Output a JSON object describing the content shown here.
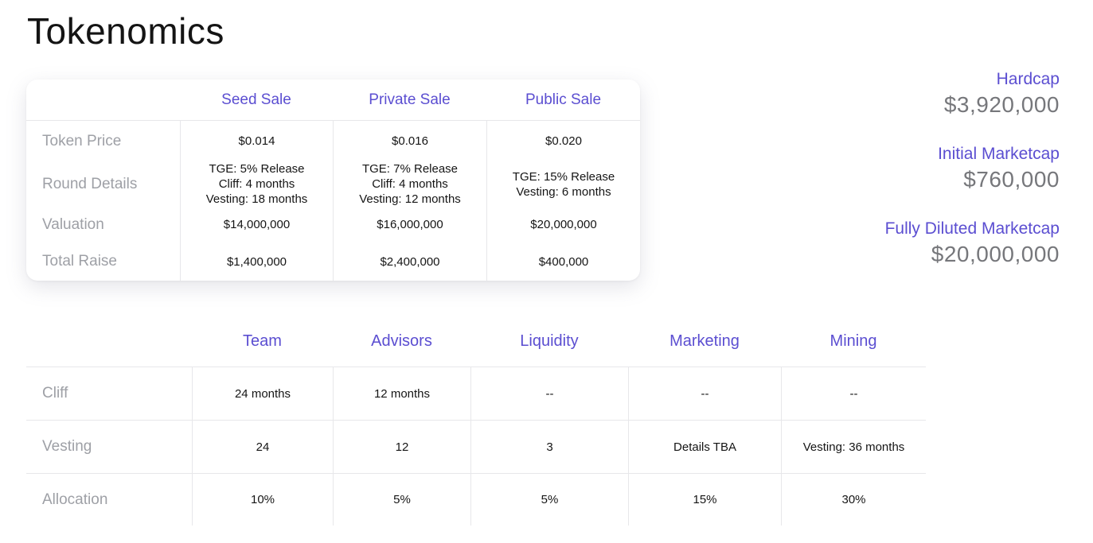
{
  "page": {
    "title": "Tokenomics"
  },
  "colors": {
    "accent": "#5b4ed1",
    "label_gray": "#9ea0a6",
    "value_dark": "#151515",
    "stat_value_gray": "#76777b",
    "border": "#e7e7ea"
  },
  "sale_table": {
    "header": [
      "Seed Sale",
      "Private Sale",
      "Public Sale"
    ],
    "row_labels": [
      "Token Price",
      "Round Details",
      "Valuation",
      "Total Raise"
    ],
    "token_price": [
      "$0.014",
      "$0.016",
      "$0.020"
    ],
    "round_details": [
      [
        "TGE: 5% Release",
        "Cliff: 4 months",
        "Vesting: 18 months"
      ],
      [
        "TGE: 7% Release",
        "Cliff: 4 months",
        "Vesting: 12 months"
      ],
      [
        "TGE: 15% Release",
        "Vesting: 6 months"
      ]
    ],
    "valuation": [
      "$14,000,000",
      "$16,000,000",
      "$20,000,000"
    ],
    "total_raise": [
      "$1,400,000",
      "$2,400,000",
      "$400,000"
    ]
  },
  "stats": [
    {
      "label": "Hardcap",
      "value": "$3,920,000"
    },
    {
      "label": "Initial Marketcap",
      "value": "$760,000"
    },
    {
      "label": "Fully Diluted Marketcap",
      "value": "$20,000,000"
    }
  ],
  "allocation_table": {
    "header": [
      "Team",
      "Advisors",
      "Liquidity",
      "Marketing",
      "Mining"
    ],
    "row_labels": [
      "Cliff",
      "Vesting",
      "Allocation"
    ],
    "cliff": [
      "24 months",
      "12 months",
      "--",
      "--",
      "--"
    ],
    "vesting": [
      "24",
      "12",
      "3",
      "Details TBA",
      "Vesting: 36 months"
    ],
    "allocation": [
      "10%",
      "5%",
      "5%",
      "15%",
      "30%"
    ]
  }
}
